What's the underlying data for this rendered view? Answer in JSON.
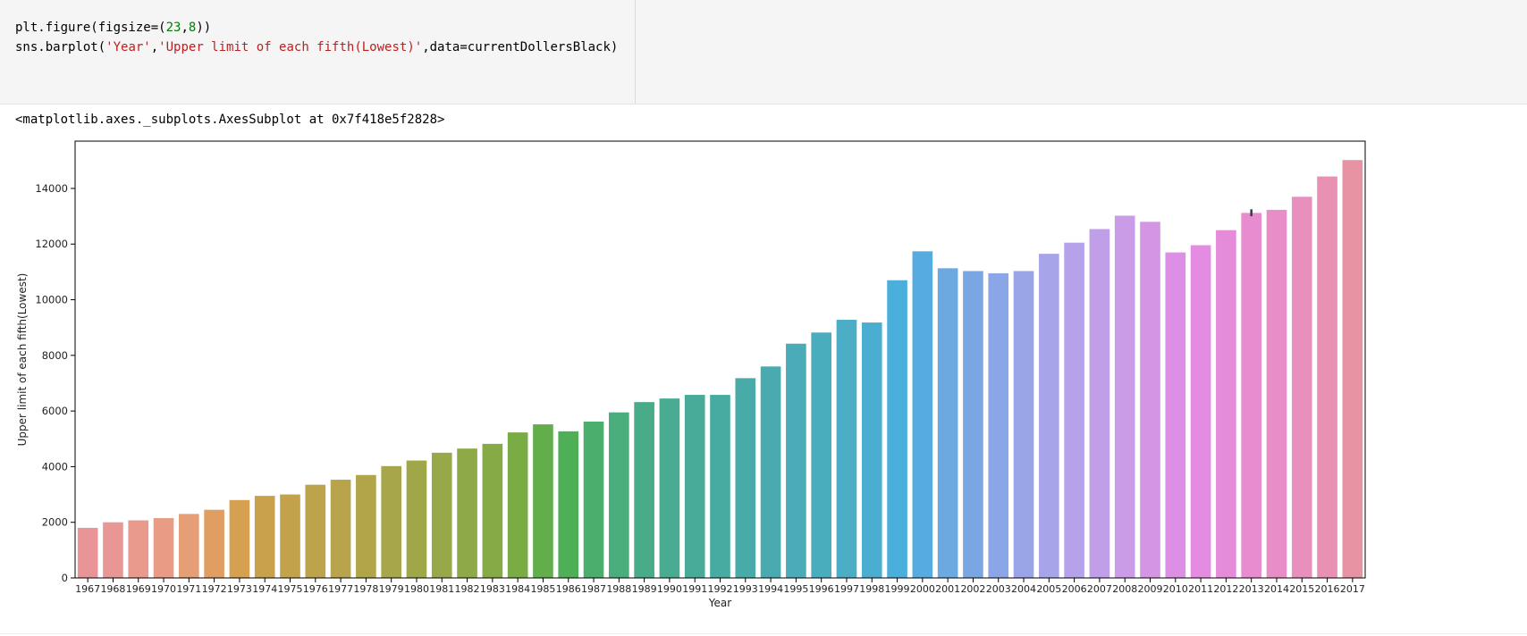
{
  "code": {
    "line1": {
      "a": "plt.figure(figsize=(",
      "n1": "23",
      "b": ",",
      "n2": "8",
      "c": "))"
    },
    "line2": {
      "a": "sns.barplot(",
      "s1": "'Year'",
      "b": ",",
      "s2": "'Upper limit of each fifth(Lowest)'",
      "c": ",data=currentDollersBlack)"
    }
  },
  "output_text": "<matplotlib.axes._subplots.AxesSubplot at 0x7f418e5f2828>",
  "chart_data": {
    "type": "bar",
    "xlabel": "Year",
    "ylabel": "Upper limit of each fifth(Lowest)",
    "ylim": [
      0,
      15700
    ],
    "yticks": [
      0,
      2000,
      4000,
      6000,
      8000,
      10000,
      12000,
      14000
    ],
    "categories": [
      "1967",
      "1968",
      "1969",
      "1970",
      "1971",
      "1972",
      "1973",
      "1974",
      "1975",
      "1976",
      "1977",
      "1978",
      "1979",
      "1980",
      "1981",
      "1982",
      "1983",
      "1984",
      "1985",
      "1986",
      "1987",
      "1988",
      "1989",
      "1990",
      "1991",
      "1992",
      "1993",
      "1994",
      "1995",
      "1996",
      "1997",
      "1998",
      "1999",
      "2000",
      "2001",
      "2002",
      "2003",
      "2004",
      "2005",
      "2006",
      "2007",
      "2008",
      "2009",
      "2010",
      "2011",
      "2012",
      "2013",
      "2014",
      "2015",
      "2016",
      "2017"
    ],
    "values": [
      1800,
      2000,
      2070,
      2150,
      2300,
      2450,
      2800,
      2950,
      3000,
      3350,
      3530,
      3700,
      4020,
      4220,
      4500,
      4650,
      4820,
      5230,
      5520,
      5270,
      5620,
      5950,
      6320,
      6450,
      6580,
      6580,
      7180,
      7600,
      8420,
      8820,
      9280,
      9180,
      10700,
      11740,
      11130,
      11030,
      10950,
      11030,
      11650,
      12050,
      12540,
      13020,
      12800,
      11700,
      11960,
      12500,
      13120,
      13230,
      13700,
      14430,
      15020
    ],
    "error_bars": [
      {
        "category": "2013",
        "low": 13000,
        "high": 13250
      }
    ],
    "colors": [
      "#e99598",
      "#e99794",
      "#e99a8d",
      "#e89c85",
      "#e59e76",
      "#e09e63",
      "#d5a04f",
      "#c9a14d",
      "#c2a24b",
      "#bda34b",
      "#b8a44b",
      "#b1a54a",
      "#a8a64a",
      "#a0a749",
      "#96a847",
      "#8ea947",
      "#86aa46",
      "#7aac45",
      "#62ae4c",
      "#4faf57",
      "#4cae6c",
      "#4aad7c",
      "#49ac88",
      "#48ab92",
      "#48ab9a",
      "#48aba1",
      "#48aba8",
      "#49abb0",
      "#49acb7",
      "#4aadbe",
      "#4badc6",
      "#4aaed0",
      "#4aafda",
      "#56abdf",
      "#6ba9e0",
      "#7aa7e3",
      "#8ba6e6",
      "#9aa5e7",
      "#a8a4e9",
      "#b5a2ea",
      "#c09fe8",
      "#ca9be7",
      "#d495e5",
      "#dc8fe4",
      "#e48ce2",
      "#e58bd9",
      "#e78ccf",
      "#e88ec6",
      "#e88fbd",
      "#e891b2",
      "#e893a4"
    ]
  }
}
